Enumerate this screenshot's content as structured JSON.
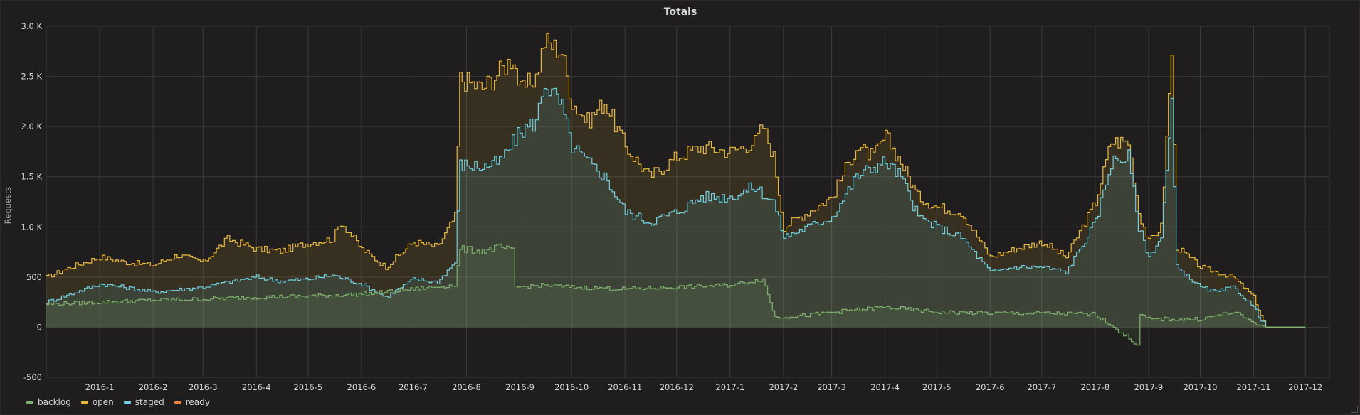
{
  "panel": {
    "title": "Totals"
  },
  "colors": {
    "background": "#1f1d1d",
    "grid": "#3b3b3b",
    "backlog": "#7eb26d",
    "open": "#eab839",
    "staged": "#6ed0e0",
    "ready": "#ef843c"
  },
  "chart_data": {
    "type": "area",
    "title": "Totals",
    "ylabel": "Requests",
    "xlabel": "",
    "x_unit": "month",
    "xlim": [
      "2015-12-01",
      "2017-12-15"
    ],
    "ylim": [
      -500,
      3000
    ],
    "yticks": [
      -500,
      0,
      500,
      1000,
      1500,
      2000,
      2500,
      3000
    ],
    "ytick_labels": [
      "-500",
      "0",
      "500",
      "1.0 K",
      "1.5 K",
      "2.0 K",
      "2.5 K",
      "3.0 K"
    ],
    "xticks": [
      "2016-01-01",
      "2016-02-01",
      "2016-03-01",
      "2016-04-01",
      "2016-05-01",
      "2016-06-01",
      "2016-07-01",
      "2016-08-01",
      "2016-09-01",
      "2016-10-01",
      "2016-11-01",
      "2016-12-01",
      "2017-01-01",
      "2017-02-01",
      "2017-03-01",
      "2017-04-01",
      "2017-05-01",
      "2017-06-01",
      "2017-07-01",
      "2017-08-01",
      "2017-09-01",
      "2017-10-01",
      "2017-11-01",
      "2017-12-01"
    ],
    "xtick_labels": [
      "2016-1",
      "2016-2",
      "2016-3",
      "2016-4",
      "2016-5",
      "2016-6",
      "2016-7",
      "2016-8",
      "2016-9",
      "2016-10",
      "2016-11",
      "2016-12",
      "2017-1",
      "2017-2",
      "2017-3",
      "2017-4",
      "2017-5",
      "2017-6",
      "2017-7",
      "2017-8",
      "2017-9",
      "2017-10",
      "2017-11",
      "2017-12"
    ],
    "grid": true,
    "legend_position": "bottom-left",
    "series": [
      {
        "name": "open",
        "color": "#eab839",
        "points": [
          [
            "2015-12-01",
            500
          ],
          [
            "2015-12-15",
            600
          ],
          [
            "2016-01-01",
            700
          ],
          [
            "2016-01-15",
            650
          ],
          [
            "2016-02-01",
            620
          ],
          [
            "2016-02-15",
            720
          ],
          [
            "2016-03-01",
            650
          ],
          [
            "2016-03-15",
            880
          ],
          [
            "2016-04-01",
            780
          ],
          [
            "2016-04-15",
            760
          ],
          [
            "2016-05-01",
            840
          ],
          [
            "2016-05-15",
            880
          ],
          [
            "2016-05-20",
            1050
          ],
          [
            "2016-06-01",
            780
          ],
          [
            "2016-06-15",
            600
          ],
          [
            "2016-07-01",
            850
          ],
          [
            "2016-07-15",
            800
          ],
          [
            "2016-07-25",
            1100
          ],
          [
            "2016-07-28",
            2480
          ],
          [
            "2016-08-10",
            2380
          ],
          [
            "2016-08-20",
            2550
          ],
          [
            "2016-08-28",
            2700
          ],
          [
            "2016-09-01",
            2350
          ],
          [
            "2016-09-10",
            2500
          ],
          [
            "2016-09-15",
            2850
          ],
          [
            "2016-09-25",
            2750
          ],
          [
            "2016-10-01",
            2250
          ],
          [
            "2016-10-10",
            2050
          ],
          [
            "2016-10-20",
            2250
          ],
          [
            "2016-11-01",
            1800
          ],
          [
            "2016-11-15",
            1500
          ],
          [
            "2016-12-01",
            1700
          ],
          [
            "2016-12-15",
            1800
          ],
          [
            "2017-01-01",
            1750
          ],
          [
            "2017-01-15",
            1850
          ],
          [
            "2017-01-20",
            2000
          ],
          [
            "2017-01-26",
            1700
          ],
          [
            "2017-02-01",
            1000
          ],
          [
            "2017-02-15",
            1150
          ],
          [
            "2017-03-01",
            1300
          ],
          [
            "2017-03-15",
            1800
          ],
          [
            "2017-03-25",
            1700
          ],
          [
            "2017-04-01",
            1900
          ],
          [
            "2017-04-10",
            1650
          ],
          [
            "2017-04-20",
            1300
          ],
          [
            "2017-05-01",
            1200
          ],
          [
            "2017-05-15",
            1150
          ],
          [
            "2017-06-01",
            700
          ],
          [
            "2017-06-15",
            780
          ],
          [
            "2017-07-01",
            850
          ],
          [
            "2017-07-15",
            700
          ],
          [
            "2017-08-01",
            1250
          ],
          [
            "2017-08-10",
            1850
          ],
          [
            "2017-08-20",
            1850
          ],
          [
            "2017-08-26",
            1150
          ],
          [
            "2017-09-01",
            850
          ],
          [
            "2017-09-08",
            1000
          ],
          [
            "2017-09-14",
            2750
          ],
          [
            "2017-09-17",
            800
          ],
          [
            "2017-10-01",
            600
          ],
          [
            "2017-10-10",
            550
          ],
          [
            "2017-10-20",
            500
          ],
          [
            "2017-11-01",
            300
          ],
          [
            "2017-11-05",
            120
          ],
          [
            "2017-11-08",
            0
          ],
          [
            "2017-12-01",
            0
          ]
        ]
      },
      {
        "name": "staged",
        "color": "#6ed0e0",
        "points": [
          [
            "2015-12-01",
            250
          ],
          [
            "2016-01-01",
            430
          ],
          [
            "2016-01-15",
            400
          ],
          [
            "2016-02-01",
            350
          ],
          [
            "2016-03-01",
            400
          ],
          [
            "2016-03-15",
            450
          ],
          [
            "2016-04-01",
            500
          ],
          [
            "2016-04-15",
            460
          ],
          [
            "2016-05-01",
            480
          ],
          [
            "2016-05-15",
            520
          ],
          [
            "2016-06-01",
            430
          ],
          [
            "2016-06-15",
            300
          ],
          [
            "2016-07-01",
            480
          ],
          [
            "2016-07-15",
            450
          ],
          [
            "2016-07-25",
            650
          ],
          [
            "2016-07-28",
            1620
          ],
          [
            "2016-08-10",
            1600
          ],
          [
            "2016-08-20",
            1650
          ],
          [
            "2016-09-01",
            1950
          ],
          [
            "2016-09-10",
            2050
          ],
          [
            "2016-09-15",
            2450
          ],
          [
            "2016-09-25",
            2200
          ],
          [
            "2016-10-01",
            1800
          ],
          [
            "2016-10-10",
            1650
          ],
          [
            "2016-10-20",
            1500
          ],
          [
            "2016-11-01",
            1150
          ],
          [
            "2016-11-15",
            1050
          ],
          [
            "2016-12-01",
            1150
          ],
          [
            "2016-12-15",
            1300
          ],
          [
            "2017-01-01",
            1300
          ],
          [
            "2017-01-15",
            1400
          ],
          [
            "2017-01-26",
            1250
          ],
          [
            "2017-02-01",
            900
          ],
          [
            "2017-02-15",
            1000
          ],
          [
            "2017-03-01",
            1100
          ],
          [
            "2017-03-15",
            1500
          ],
          [
            "2017-03-25",
            1600
          ],
          [
            "2017-04-01",
            1650
          ],
          [
            "2017-04-10",
            1500
          ],
          [
            "2017-04-20",
            1100
          ],
          [
            "2017-05-01",
            1000
          ],
          [
            "2017-05-15",
            900
          ],
          [
            "2017-06-01",
            550
          ],
          [
            "2017-06-15",
            600
          ],
          [
            "2017-07-01",
            600
          ],
          [
            "2017-07-15",
            550
          ],
          [
            "2017-08-01",
            1050
          ],
          [
            "2017-08-10",
            1650
          ],
          [
            "2017-08-20",
            1700
          ],
          [
            "2017-08-26",
            1000
          ],
          [
            "2017-09-01",
            700
          ],
          [
            "2017-09-08",
            900
          ],
          [
            "2017-09-14",
            2200
          ],
          [
            "2017-09-17",
            600
          ],
          [
            "2017-10-01",
            400
          ],
          [
            "2017-10-10",
            350
          ],
          [
            "2017-10-20",
            400
          ],
          [
            "2017-11-01",
            200
          ],
          [
            "2017-11-05",
            80
          ],
          [
            "2017-11-08",
            0
          ],
          [
            "2017-12-01",
            0
          ]
        ]
      },
      {
        "name": "backlog",
        "color": "#7eb26d",
        "points": [
          [
            "2015-12-01",
            230
          ],
          [
            "2016-01-01",
            250
          ],
          [
            "2016-02-01",
            270
          ],
          [
            "2016-03-01",
            280
          ],
          [
            "2016-04-01",
            300
          ],
          [
            "2016-05-01",
            310
          ],
          [
            "2016-06-01",
            330
          ],
          [
            "2016-07-01",
            380
          ],
          [
            "2016-07-25",
            420
          ],
          [
            "2016-07-28",
            780
          ],
          [
            "2016-08-10",
            760
          ],
          [
            "2016-08-20",
            800
          ],
          [
            "2016-08-27",
            760
          ],
          [
            "2016-08-29",
            400
          ],
          [
            "2016-09-15",
            420
          ],
          [
            "2016-10-01",
            400
          ],
          [
            "2016-11-01",
            380
          ],
          [
            "2016-12-01",
            400
          ],
          [
            "2017-01-01",
            420
          ],
          [
            "2017-01-20",
            480
          ],
          [
            "2017-01-27",
            100
          ],
          [
            "2017-02-15",
            120
          ],
          [
            "2017-03-01",
            150
          ],
          [
            "2017-04-01",
            200
          ],
          [
            "2017-05-01",
            150
          ],
          [
            "2017-06-01",
            140
          ],
          [
            "2017-07-01",
            140
          ],
          [
            "2017-08-01",
            130
          ],
          [
            "2017-08-25",
            -170
          ],
          [
            "2017-08-27",
            120
          ],
          [
            "2017-09-01",
            80
          ],
          [
            "2017-10-01",
            80
          ],
          [
            "2017-10-20",
            150
          ],
          [
            "2017-11-01",
            50
          ],
          [
            "2017-11-08",
            0
          ],
          [
            "2017-12-01",
            0
          ]
        ]
      },
      {
        "name": "ready",
        "color": "#ef843c",
        "points": []
      }
    ],
    "legend": [
      "backlog",
      "open",
      "staged",
      "ready"
    ]
  }
}
